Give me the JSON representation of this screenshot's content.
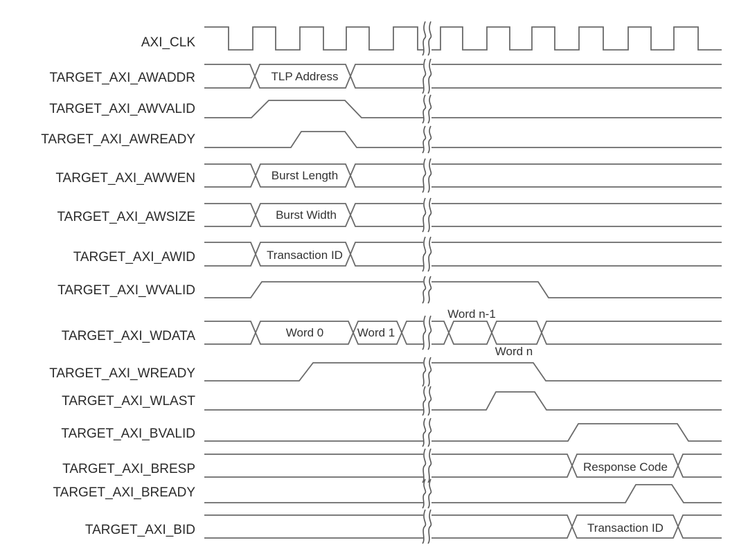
{
  "signals": [
    {
      "name": "AXI_CLK",
      "kind": "clock"
    },
    {
      "name": "TARGET_AXI_AWADDR",
      "kind": "bus",
      "values": [
        "TLP Address"
      ]
    },
    {
      "name": "TARGET_AXI_AWVALID",
      "kind": "level"
    },
    {
      "name": "TARGET_AXI_AWREADY",
      "kind": "level"
    },
    {
      "name": "TARGET_AXI_AWWEN",
      "kind": "bus",
      "values": [
        "Burst Length"
      ]
    },
    {
      "name": "TARGET_AXI_AWSIZE",
      "kind": "bus",
      "values": [
        "Burst Width"
      ]
    },
    {
      "name": "TARGET_AXI_AWID",
      "kind": "bus",
      "values": [
        "Transaction ID"
      ]
    },
    {
      "name": "TARGET_AXI_WVALID",
      "kind": "level"
    },
    {
      "name": "TARGET_AXI_WDATA",
      "kind": "bus",
      "values": [
        "Word 0",
        "Word 1",
        "Word n-1",
        "Word n"
      ]
    },
    {
      "name": "TARGET_AXI_WREADY",
      "kind": "level"
    },
    {
      "name": "TARGET_AXI_WLAST",
      "kind": "level"
    },
    {
      "name": "TARGET_AXI_BVALID",
      "kind": "level"
    },
    {
      "name": "TARGET_AXI_BRESP",
      "kind": "bus",
      "values": [
        "Response Code"
      ]
    },
    {
      "name": "TARGET_AXI_BREADY",
      "kind": "level"
    },
    {
      "name": "TARGET_AXI_BID",
      "kind": "bus",
      "values": [
        "Transaction ID"
      ]
    }
  ],
  "colors": {
    "line": "#6a6a6a",
    "text": "#2a2a2a",
    "background": "#ffffff"
  }
}
